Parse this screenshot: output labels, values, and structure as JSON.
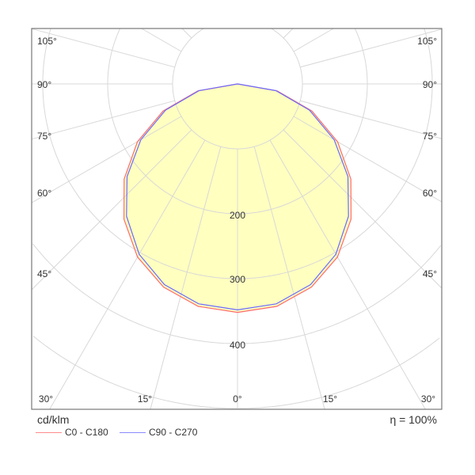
{
  "chart_data": {
    "type": "polar",
    "unit_label": "cd/klm",
    "efficiency_label": "η = 100%",
    "radial_ticks": [
      100,
      200,
      300,
      400,
      500,
      600,
      700
    ],
    "radial_tick_labels": [
      "200",
      "300",
      "400"
    ],
    "angle_labels": {
      "left": [
        "105°",
        "90°",
        "75°",
        "60°",
        "45°"
      ],
      "bottom": [
        "30°",
        "15°",
        "0°",
        "15°",
        "30°"
      ],
      "right": [
        "105°",
        "90°",
        "75°",
        "60°",
        "45°"
      ]
    },
    "angles": [
      0,
      10,
      20,
      30,
      40,
      50,
      60,
      70,
      80,
      90
    ],
    "series": [
      {
        "name": "C0 - C180",
        "color": "#ff6b6b",
        "values": [
          352,
          348,
          333,
          308,
          272,
          228,
          178,
          122,
          62,
          0
        ]
      },
      {
        "name": "C90 - C270",
        "color": "#6b6bff",
        "values": [
          348,
          344,
          329,
          303,
          266,
          222,
          172,
          118,
          60,
          0
        ]
      }
    ],
    "fill_color": "#ffffc0",
    "grid": true
  }
}
